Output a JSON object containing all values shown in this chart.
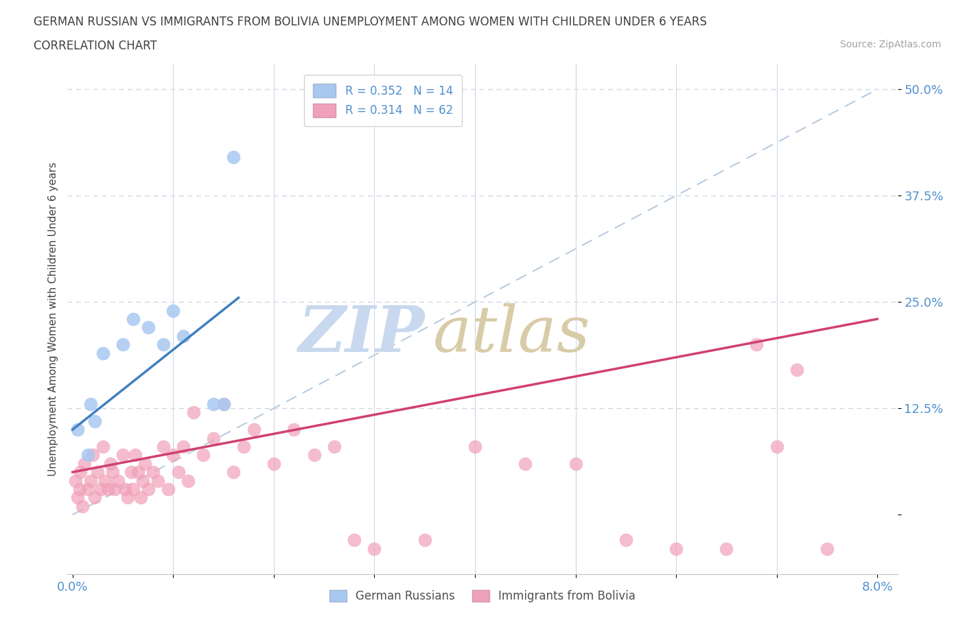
{
  "title_line1": "GERMAN RUSSIAN VS IMMIGRANTS FROM BOLIVIA UNEMPLOYMENT AMONG WOMEN WITH CHILDREN UNDER 6 YEARS",
  "title_line2": "CORRELATION CHART",
  "source": "Source: ZipAtlas.com",
  "ylabel": "Unemployment Among Women with Children Under 6 years",
  "blue_color": "#a8c8f0",
  "pink_color": "#f0a0b8",
  "blue_line_color": "#4080c0",
  "pink_line_color": "#d04070",
  "dashed_line_color": "#b8cce0",
  "background_color": "#ffffff",
  "title_color": "#404040",
  "axis_label_color": "#5090d0",
  "grid_color": "#d0d8e4",
  "blue_scatter_x": [
    0.05,
    0.15,
    0.18,
    0.22,
    0.3,
    0.5,
    0.6,
    0.75,
    0.9,
    1.0,
    1.1,
    1.4,
    1.5,
    1.6
  ],
  "blue_scatter_y": [
    10,
    7,
    13,
    11,
    19,
    20,
    23,
    22,
    20,
    24,
    21,
    13,
    13,
    42
  ],
  "pink_scatter_x": [
    0.03,
    0.05,
    0.07,
    0.08,
    0.1,
    0.12,
    0.15,
    0.18,
    0.2,
    0.22,
    0.25,
    0.28,
    0.3,
    0.32,
    0.35,
    0.38,
    0.4,
    0.42,
    0.45,
    0.5,
    0.52,
    0.55,
    0.58,
    0.6,
    0.62,
    0.65,
    0.68,
    0.7,
    0.72,
    0.75,
    0.8,
    0.85,
    0.9,
    0.95,
    1.0,
    1.05,
    1.1,
    1.15,
    1.2,
    1.3,
    1.4,
    1.5,
    1.6,
    1.7,
    1.8,
    2.0,
    2.2,
    2.4,
    2.6,
    2.8,
    3.0,
    3.5,
    4.0,
    4.5,
    5.0,
    5.5,
    6.0,
    6.5,
    7.0,
    7.5,
    6.8,
    7.2
  ],
  "pink_scatter_y": [
    4,
    2,
    3,
    5,
    1,
    6,
    3,
    4,
    7,
    2,
    5,
    3,
    8,
    4,
    3,
    6,
    5,
    3,
    4,
    7,
    3,
    2,
    5,
    3,
    7,
    5,
    2,
    4,
    6,
    3,
    5,
    4,
    8,
    3,
    7,
    5,
    8,
    4,
    12,
    7,
    9,
    13,
    5,
    8,
    10,
    6,
    10,
    7,
    8,
    -3,
    -4,
    -3,
    8,
    6,
    6,
    -3,
    -4,
    -4,
    8,
    -4,
    20,
    17
  ],
  "blue_line_x0": 0.0,
  "blue_line_y0": 10.0,
  "blue_line_x1": 1.65,
  "blue_line_y1": 25.5,
  "pink_line_x0": 0.0,
  "pink_line_y0": 5.0,
  "pink_line_x1": 8.0,
  "pink_line_y1": 23.0,
  "dash_line_x0": 0.0,
  "dash_line_y0": 0.0,
  "dash_line_x1": 8.0,
  "dash_line_y1": 50.0,
  "xlim_left": -0.05,
  "xlim_right": 8.2,
  "ylim_bottom": -7,
  "ylim_top": 53,
  "ytick_vals": [
    0,
    12.5,
    25.0,
    37.5,
    50.0
  ],
  "ytick_labels": [
    "",
    "12.5%",
    "25.0%",
    "37.5%",
    "50.0%"
  ],
  "xtick_left_label": "0.0%",
  "xtick_right_label": "8.0%",
  "legend_blue_label": "R = 0.352   N = 14",
  "legend_pink_label": "R = 0.314   N = 62",
  "bottom_legend_blue": "German Russians",
  "bottom_legend_pink": "Immigrants from Bolivia",
  "watermark_zip_color": "#c8d8ee",
  "watermark_atlas_color": "#d8cca8"
}
